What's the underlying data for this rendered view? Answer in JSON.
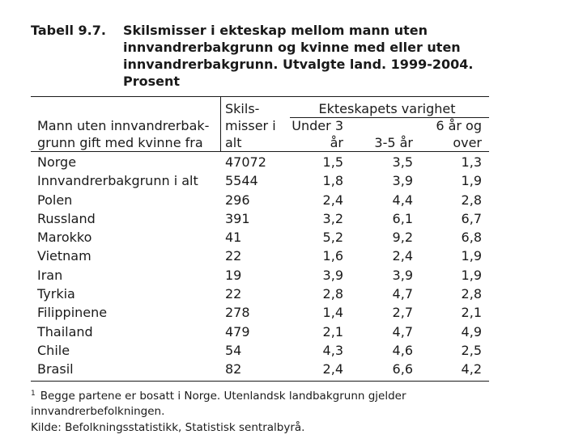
{
  "title": {
    "number": "Tabell 9.7.",
    "lines": [
      "Skilsmisser i ekteskap mellom mann uten",
      "innvandrerbakgrunn og kvinne med eller uten",
      "innvandrerbakgrunn. Utvalgte land. 1999-2004.",
      "Prosent"
    ]
  },
  "header": {
    "stub_lines": [
      "Mann uten innvandrerbak-",
      "grunn gift med kvinne fra"
    ],
    "count_lines": [
      "Skils-",
      "misser i",
      "alt"
    ],
    "group_label": "Ekteskapets varighet",
    "col1_lines": [
      "Under 3",
      "år"
    ],
    "col2_lines": [
      "3-5 år"
    ],
    "col3_lines": [
      "6 år og",
      "over"
    ]
  },
  "rows": [
    {
      "name": "Norge",
      "count": "47072",
      "v1": "1,5",
      "v2": "3,5",
      "v3": "1,3"
    },
    {
      "name": "Innvandrerbakgrunn i alt",
      "count": "5544",
      "v1": "1,8",
      "v2": "3,9",
      "v3": "1,9"
    },
    {
      "name": "Polen",
      "count": "296",
      "v1": "2,4",
      "v2": "4,4",
      "v3": "2,8"
    },
    {
      "name": "Russland",
      "count": "391",
      "v1": "3,2",
      "v2": "6,1",
      "v3": "6,7"
    },
    {
      "name": "Marokko",
      "count": "41",
      "v1": "5,2",
      "v2": "9,2",
      "v3": "6,8"
    },
    {
      "name": "Vietnam",
      "count": "22",
      "v1": "1,6",
      "v2": "2,4",
      "v3": "1,9"
    },
    {
      "name": "Iran",
      "count": "19",
      "v1": "3,9",
      "v2": "3,9",
      "v3": "1,9"
    },
    {
      "name": "Tyrkia",
      "count": "22",
      "v1": "2,8",
      "v2": "4,7",
      "v3": "2,8"
    },
    {
      "name": "Filippinene",
      "count": "278",
      "v1": "1,4",
      "v2": "2,7",
      "v3": "2,1"
    },
    {
      "name": "Thailand",
      "count": "479",
      "v1": "2,1",
      "v2": "4,7",
      "v3": "4,9"
    },
    {
      "name": "Chile",
      "count": "54",
      "v1": "4,3",
      "v2": "4,6",
      "v3": "2,5"
    },
    {
      "name": "Brasil",
      "count": "82",
      "v1": "2,4",
      "v2": "6,6",
      "v3": "4,2"
    }
  ],
  "footnote": {
    "marker": "1",
    "lines": [
      "Begge partene er bosatt i Norge. Utenlandsk landbakgrunn gjelder",
      "innvandrerbefolkningen."
    ]
  },
  "source": "Kilde: Befolkningsstatistikk, Statistisk sentralbyrå."
}
